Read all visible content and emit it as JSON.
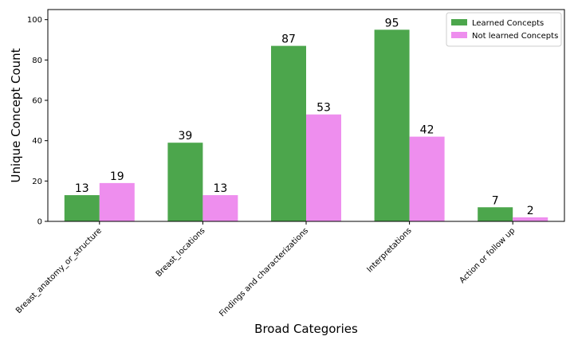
{
  "chart_data": {
    "type": "bar",
    "xlabel": "Broad Categories",
    "ylabel": "Unique Concept Count",
    "categories": [
      "Breast_anatomy_or_structure",
      "Breast_locations",
      "Findings and characterizations",
      "Interpretations",
      "Action or follow up"
    ],
    "series": [
      {
        "name": "Learned Concepts",
        "color": "#4ca64c",
        "values": [
          13,
          39,
          87,
          95,
          7
        ]
      },
      {
        "name": "Not learned Concepts",
        "color": "#ee8eee",
        "values": [
          19,
          13,
          53,
          42,
          2
        ]
      }
    ],
    "ylim": [
      0,
      105
    ],
    "yticks": [
      0,
      20,
      40,
      60,
      80,
      100
    ],
    "legend": "upper right",
    "data_labels": true
  }
}
